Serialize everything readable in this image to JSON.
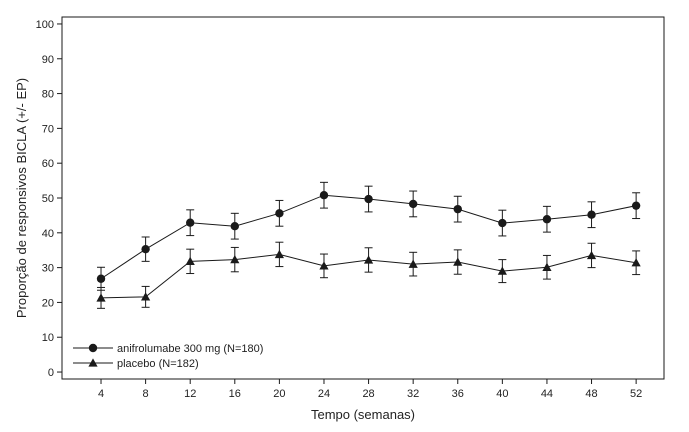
{
  "chart_data": {
    "type": "line",
    "xlabel": "Tempo (semanas)",
    "ylabel": "Proporção de responsivos BICLA (+/- EP)",
    "x": [
      4,
      8,
      12,
      16,
      20,
      24,
      28,
      32,
      36,
      40,
      44,
      48,
      52
    ],
    "xticks": [
      "4",
      "8",
      "12",
      "16",
      "20",
      "24",
      "28",
      "32",
      "36",
      "40",
      "44",
      "48",
      "52"
    ],
    "xlim": [
      0.5,
      54.5
    ],
    "ylim": [
      -2,
      102
    ],
    "yticks": [
      "0",
      "10",
      "20",
      "30",
      "40",
      "50",
      "60",
      "70",
      "80",
      "90",
      "100"
    ],
    "grid": false,
    "legend_position": "bottom-left",
    "series": [
      {
        "name": "anifrolumabe 300 mg (N=180)",
        "marker": "circle",
        "color": "#1a1a1a",
        "values": [
          26.8,
          35.3,
          42.9,
          41.9,
          45.6,
          50.8,
          49.7,
          48.3,
          46.8,
          42.8,
          43.9,
          45.2,
          47.8
        ],
        "error": [
          3.3,
          3.5,
          3.7,
          3.7,
          3.7,
          3.7,
          3.7,
          3.7,
          3.7,
          3.7,
          3.7,
          3.7,
          3.7
        ]
      },
      {
        "name": "placebo (N=182)",
        "marker": "triangle",
        "color": "#1a1a1a",
        "values": [
          21.3,
          21.6,
          31.8,
          32.3,
          33.8,
          30.5,
          32.2,
          31.0,
          31.6,
          29.0,
          30.1,
          33.5,
          31.4
        ],
        "error": [
          3.0,
          3.0,
          3.5,
          3.5,
          3.5,
          3.4,
          3.5,
          3.4,
          3.5,
          3.3,
          3.4,
          3.5,
          3.4
        ]
      }
    ]
  }
}
